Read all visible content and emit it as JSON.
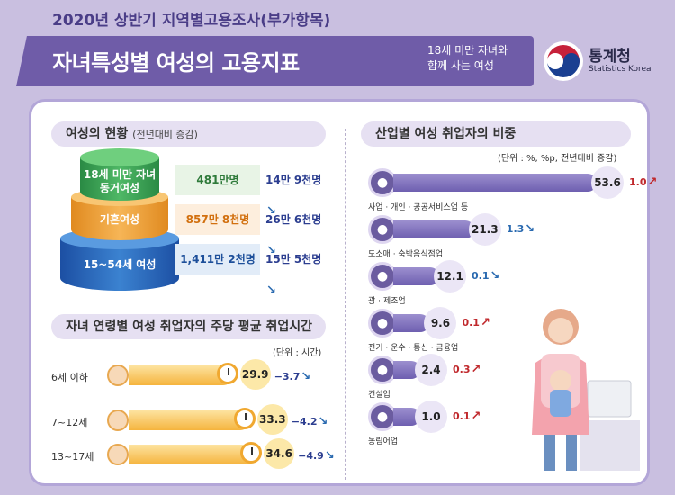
{
  "header": {
    "subtitle": "2020년 상반기 지역별고용조사(부가항목)",
    "title": "자녀특성별 여성의 고용지표",
    "note_line1": "18세 미만 자녀와",
    "note_line2": "함께 사는 여성",
    "logo_name": "통계청",
    "logo_eng": "Statistics Korea"
  },
  "status": {
    "title": "여성의 현황",
    "title_note": "(전년대비 증감)",
    "rows": [
      {
        "label_line1": "18세 미만 자녀",
        "label_line2": "동거여성",
        "count": "481만명",
        "change": "14만 9천명",
        "direction": "down",
        "color": "#2e9a4a"
      },
      {
        "label_line1": "기혼여성",
        "label_line2": "",
        "count": "857만 8천명",
        "change": "26만 6천명",
        "direction": "down",
        "color": "#e8962a"
      },
      {
        "label_line1": "15~54세 여성",
        "label_line2": "",
        "count": "1,411만 2천명",
        "change": "15만 5천명",
        "direction": "down",
        "color": "#1f63b0"
      }
    ]
  },
  "hours": {
    "title": "자녀 연령별 여성 취업자의 주당 평균 취업시간",
    "unit": "(단위 : 시간)",
    "rows": [
      {
        "label": "6세 이하",
        "value": "29.9",
        "change": "−3.7"
      },
      {
        "label": "7~12세",
        "value": "33.3",
        "change": "−4.2"
      },
      {
        "label": "13~17세",
        "value": "34.6",
        "change": "−4.9"
      }
    ]
  },
  "industry": {
    "title": "산업별 여성 취업자의 비중",
    "unit": "(단위 : %, %p, 전년대비 증감)",
    "rows": [
      {
        "name": "사업 · 개인 · 공공서비스업 등",
        "share": 53.6,
        "share_label": "53.6",
        "change": "1.0",
        "direction": "up",
        "icon": "document-icon"
      },
      {
        "name": "도소매 · 숙박음식점업",
        "share": 21.3,
        "share_label": "21.3",
        "change": "1.3",
        "direction": "down",
        "icon": "plate-icon"
      },
      {
        "name": "광 · 제조업",
        "share": 12.1,
        "share_label": "12.1",
        "change": "0.1",
        "direction": "down",
        "icon": "gear-icon"
      },
      {
        "name": "전기 · 운수 · 통신 · 금융업",
        "share": 9.6,
        "share_label": "9.6",
        "change": "0.1",
        "direction": "up",
        "icon": "phone-icon"
      },
      {
        "name": "건설업",
        "share": 2.4,
        "share_label": "2.4",
        "change": "0.3",
        "direction": "up",
        "icon": "crane-icon"
      },
      {
        "name": "농림어업",
        "share": 1.0,
        "share_label": "1.0",
        "change": "0.1",
        "direction": "up",
        "icon": "wheat-icon"
      }
    ]
  },
  "colors": {
    "header_bg": "#6f5ca8",
    "industry_bar": "#7a6cbd",
    "hours_bar": "#f5b43e",
    "increase": "#c0282c",
    "decrease": "#2a6ab0"
  }
}
